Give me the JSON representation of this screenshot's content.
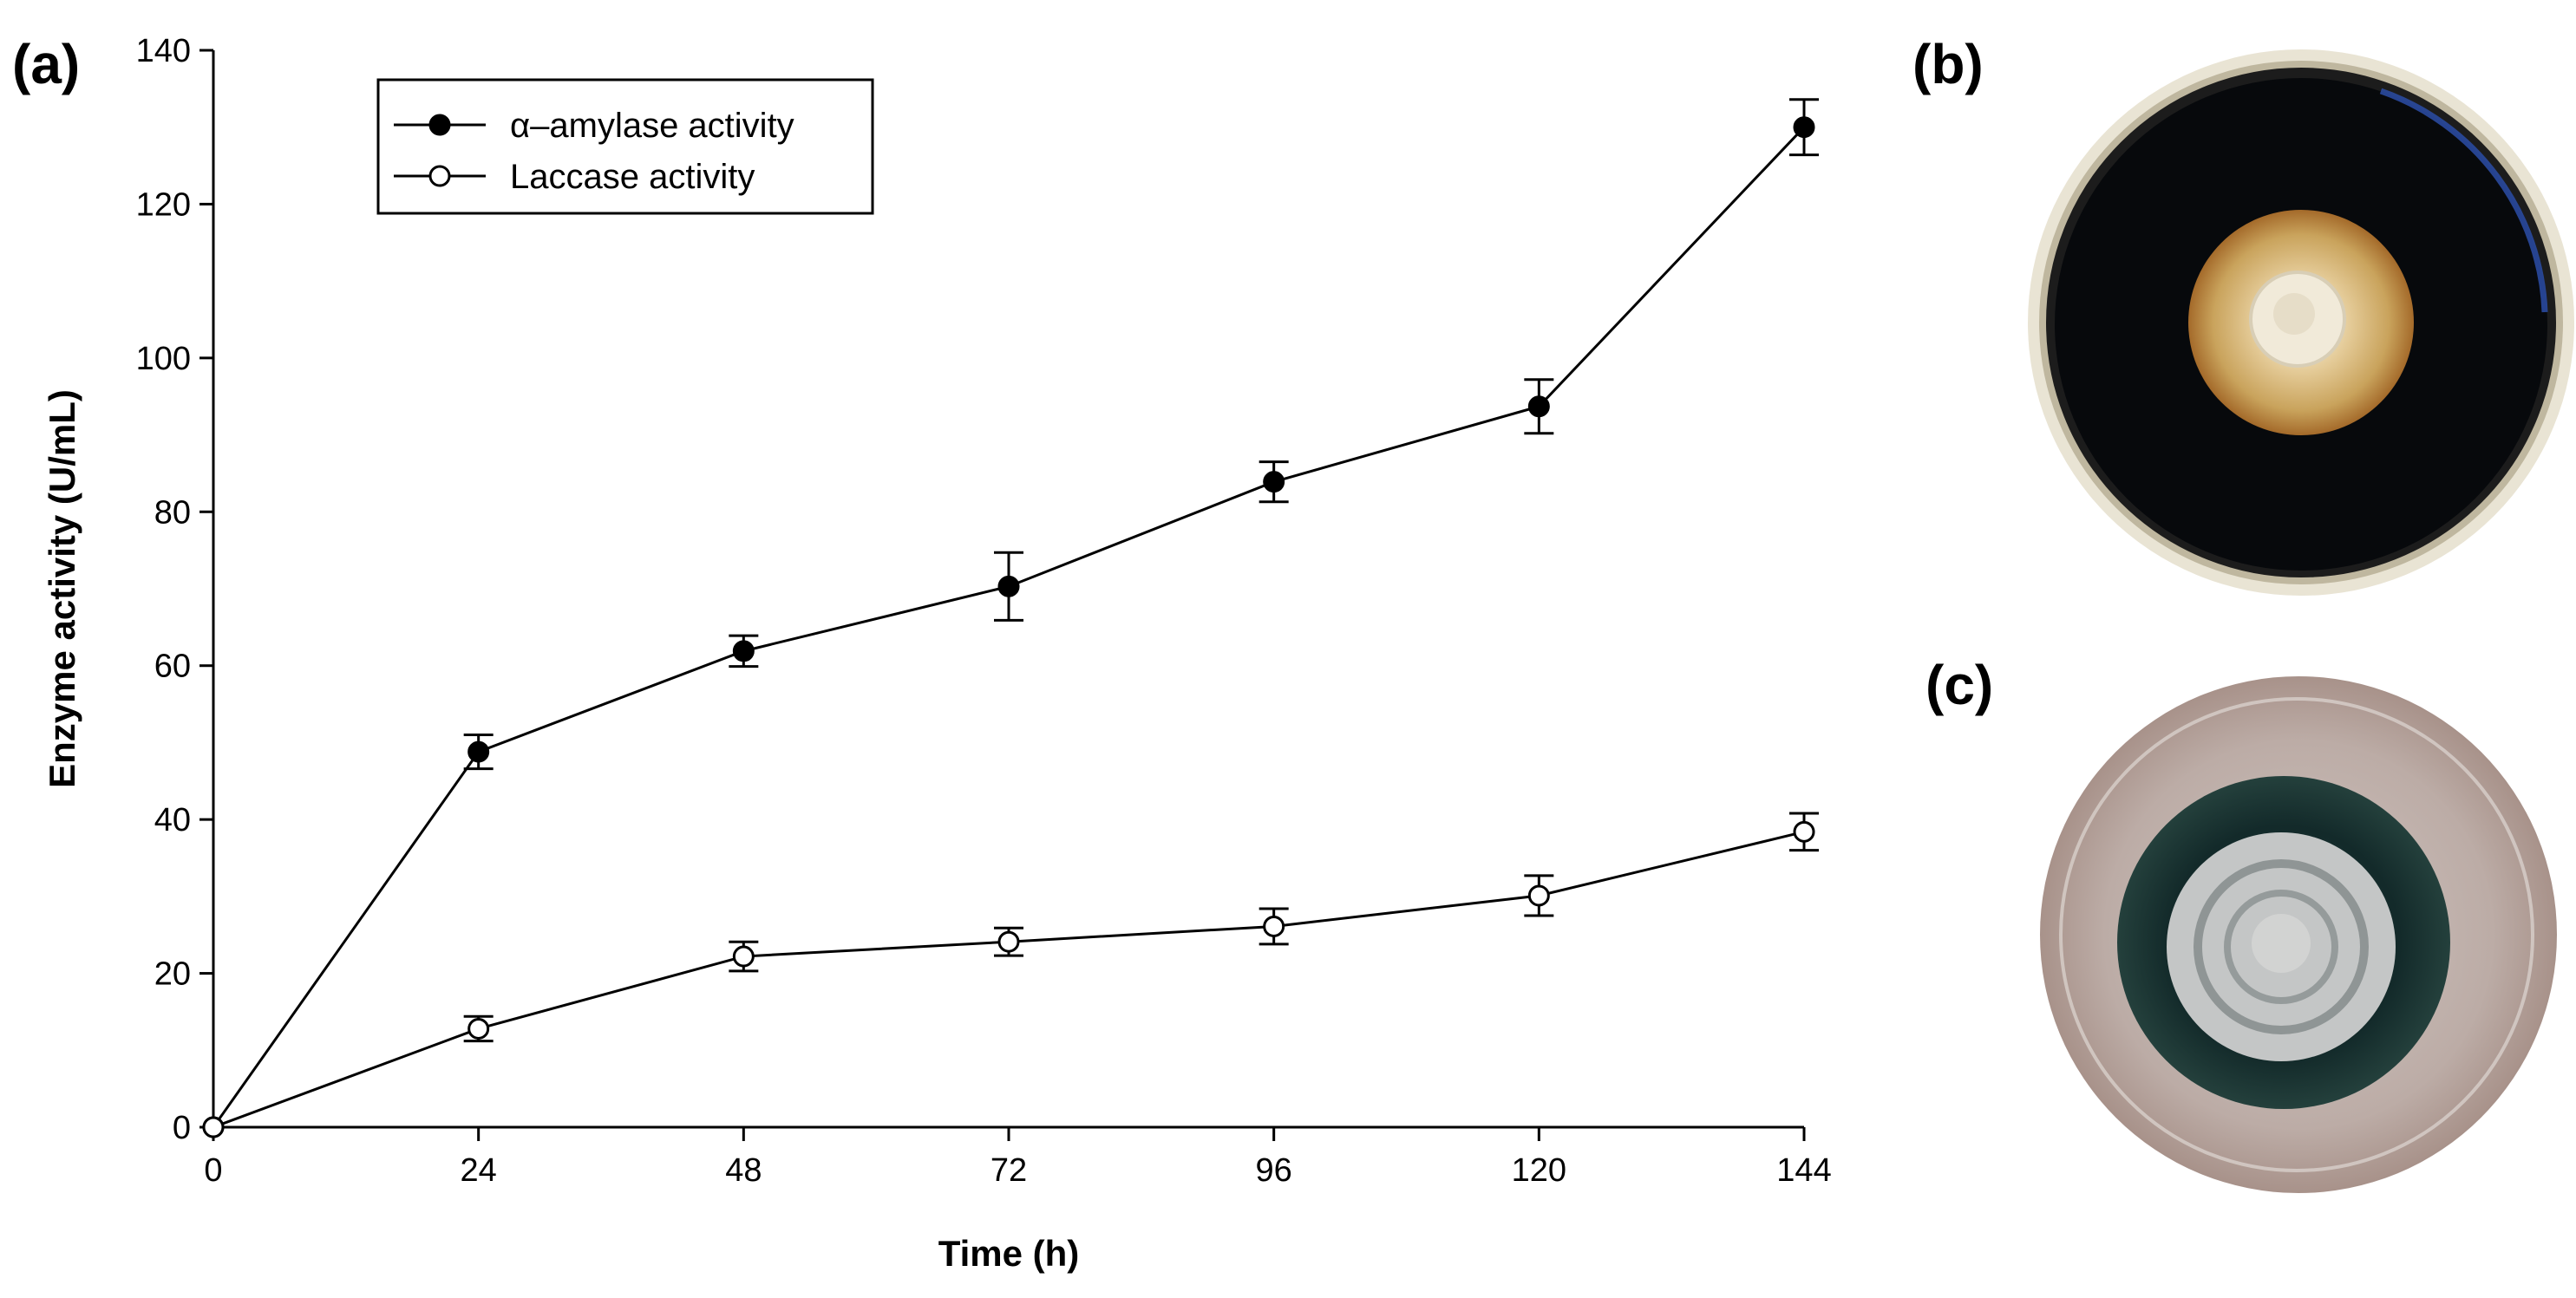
{
  "panels": {
    "a": "(a)",
    "b": "(b)",
    "c": "(c)"
  },
  "chart_data": {
    "type": "line",
    "title": "",
    "xlabel": "Time (h)",
    "ylabel": "Enzyme activity (U/mL)",
    "x": [
      0,
      24,
      48,
      72,
      96,
      120,
      144
    ],
    "xticks": [
      "0",
      "24",
      "48",
      "72",
      "96",
      "120",
      "144"
    ],
    "yticks": [
      "0",
      "20",
      "40",
      "60",
      "80",
      "100",
      "120",
      "140"
    ],
    "xlim": [
      0,
      144
    ],
    "ylim": [
      0,
      140
    ],
    "grid": false,
    "legend_position": "top-left",
    "series": [
      {
        "name": "α–amylase activity",
        "marker": "filled-circle",
        "values": [
          0,
          48.8,
          61.9,
          70.3,
          83.9,
          93.7,
          130.0
        ],
        "errors": [
          0,
          2.2,
          2.0,
          4.4,
          2.6,
          3.5,
          3.6
        ]
      },
      {
        "name": "Laccase activity",
        "marker": "open-circle",
        "values": [
          0,
          12.8,
          22.2,
          24.1,
          26.1,
          30.1,
          38.4
        ],
        "errors": [
          0,
          1.6,
          1.9,
          1.8,
          2.3,
          2.6,
          2.4
        ]
      }
    ]
  },
  "colors": {
    "plate_b_agar": "#07090c",
    "plate_b_halo": "#c9a35c",
    "plate_b_colony": "#f1ead9",
    "plate_c_agar": "#b9a8a2",
    "plate_c_halo": "#142c2c",
    "plate_c_colony": "#c4c6c6"
  }
}
